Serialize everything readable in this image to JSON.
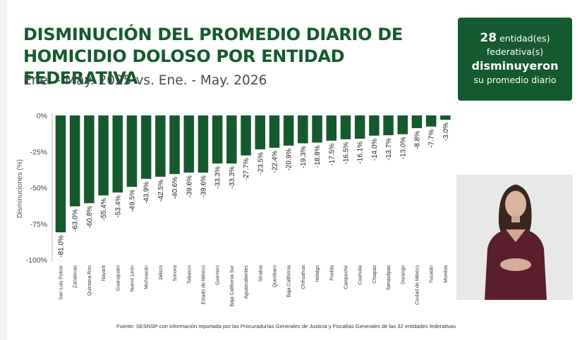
{
  "title_line1": "DISMINUCIÓN DEL PROMEDIO DIARIO DE",
  "title_line2": "HOMICIDIO DOLOSO POR ENTIDAD FEDERATIVA",
  "subtitle": "Ene. - May. 2025 vs. Ene. - May. 2026",
  "summary": {
    "count": "28",
    "line1_rest": "entidad(es)",
    "line2": "federativa(s)",
    "line3": "disminuyeron",
    "line4": "su promedio diario"
  },
  "source": "Fuente: SESNSP con información reportada por las Procuradurías Generales de Justicia y Fiscalías Generales de las 32 entidades federativas",
  "colors": {
    "bar": "#145a2e",
    "title": "#145a2e",
    "panel": "#145a2e",
    "grid": "#bdbdbd"
  },
  "chart_data": {
    "type": "bar",
    "ylabel": "Disminuciones (%)",
    "ylim": [
      -100,
      0
    ],
    "yticks": [
      0,
      -25,
      -50,
      -75,
      -100
    ],
    "ytick_labels": [
      "0%",
      "-25%",
      "-50%",
      "-75%",
      "-100%"
    ],
    "categories": [
      "San Luis Potosí",
      "Zacatecas",
      "Quintana Roo",
      "Nayarit",
      "Guanajuato",
      "Nuevo León",
      "Michoacán",
      "Jalisco",
      "Sonora",
      "Tabasco",
      "Estado de México",
      "Guerrero",
      "Baja California Sur",
      "Aguascalientes",
      "Sinaloa",
      "Querétaro",
      "Baja California",
      "Chihuahua",
      "Hidalgo",
      "Puebla",
      "Campeche",
      "Coahuila",
      "Chiapas",
      "Tamaulipas",
      "Durango",
      "Ciudad de México",
      "Yucatán",
      "Morelos"
    ],
    "values": [
      -81.0,
      -63.0,
      -60.8,
      -55.4,
      -53.4,
      -49.5,
      -43.9,
      -42.5,
      -40.6,
      -39.6,
      -39.6,
      -33.3,
      -33.3,
      -27.7,
      -23.5,
      -22.4,
      -20.9,
      -19.3,
      -18.8,
      -17.5,
      -16.5,
      -16.1,
      -14.0,
      -13.7,
      -13.0,
      -8.8,
      -7.7,
      -3.0
    ],
    "data_labels": [
      "-81.0%",
      "-63.0%",
      "-60.8%",
      "-55.4%",
      "-53.4%",
      "-49.5%",
      "-43.9%",
      "-42.5%",
      "-40.6%",
      "-39.6%",
      "-39.6%",
      "-33.3%",
      "-33.3%",
      "-27.7%",
      "-23.5%",
      "-22.4%",
      "-20.9%",
      "-19.3%",
      "-18.8%",
      "-17.5%",
      "-16.5%",
      "-16.1%",
      "-14.0%",
      "-13.7%",
      "-13.0%",
      "-8.8%",
      "-7.7%",
      "-3.0%"
    ],
    "grid": false
  }
}
